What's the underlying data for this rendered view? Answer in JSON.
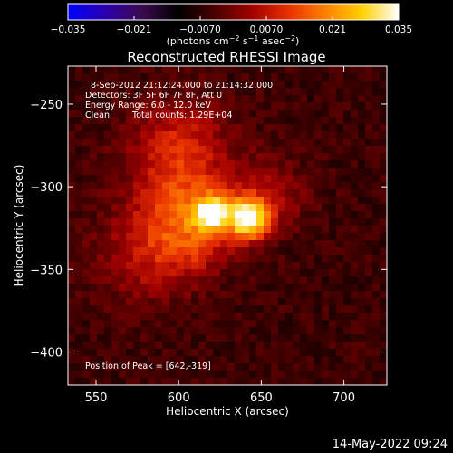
{
  "colorbar": {
    "ticks": [
      -0.035,
      -0.021,
      -0.007,
      0.007,
      0.021,
      0.035
    ],
    "tick_labels": [
      "−0.035",
      "−0.021",
      "−0.0070",
      "0.0070",
      "0.021",
      "0.035"
    ],
    "units_main": "(photons cm",
    "units_exp1": "−2",
    "units_mid": " s",
    "units_exp2": "−1",
    "units_asec": " asec",
    "units_exp3": "−2",
    "units_end": ")",
    "colormap_stops": [
      "#0000ff",
      "#2a00b0",
      "#3c0a50",
      "#000000",
      "#4a0000",
      "#a00000",
      "#e83000",
      "#ff8000",
      "#ffd000",
      "#ffffff"
    ]
  },
  "chart_data": {
    "type": "heatmap",
    "title": "Reconstructed RHESSI Image",
    "xlabel": "Heliocentric X (arcsec)",
    "ylabel": "Heliocentric Y (arcsec)",
    "xlim": [
      533,
      726
    ],
    "ylim": [
      -420,
      -227
    ],
    "x_ticks": [
      550,
      600,
      650,
      700
    ],
    "y_ticks": [
      -250,
      -300,
      -350,
      -400
    ],
    "value_range": [
      -0.035,
      0.035
    ],
    "sources": [
      {
        "x": 642,
        "y": -319,
        "peak": 0.035,
        "sigma": 8
      },
      {
        "x": 620,
        "y": -316,
        "peak": 0.03,
        "sigma": 7
      },
      {
        "x": 608,
        "y": -322,
        "peak": 0.014,
        "sigma": 18
      },
      {
        "x": 600,
        "y": -280,
        "peak": 0.01,
        "sigma": 22
      },
      {
        "x": 580,
        "y": -340,
        "peak": 0.007,
        "sigma": 22
      },
      {
        "x": 655,
        "y": -305,
        "peak": 0.006,
        "sigma": 16
      }
    ],
    "peak_position": [
      642,
      -319
    ],
    "annotations": {
      "time_range": "8-Sep-2012 21:12:24.000 to 21:14:32.000",
      "detectors": "Detectors: 3F 5F 6F 7F 8F, Att 0",
      "energy": "Energy Range: 6.0 - 12.0 keV",
      "algorithm": "Clean",
      "counts": "Total counts: 1.29E+04",
      "peak": "Position of Peak = [642,-319]"
    }
  },
  "footer": {
    "timestamp": "14-May-2022 09:24"
  }
}
